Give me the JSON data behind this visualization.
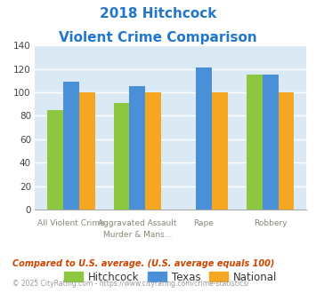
{
  "title_line1": "2018 Hitchcock",
  "title_line2": "Violent Crime Comparison",
  "cat_labels_top": [
    "",
    "Aggravated Assault",
    "",
    ""
  ],
  "cat_labels_bot": [
    "All Violent Crime",
    "Murder & Mans...",
    "Rape",
    "Robbery"
  ],
  "series": {
    "Hitchcock": [
      85,
      91,
      0,
      115
    ],
    "Texas": [
      109,
      105,
      121,
      115
    ],
    "National": [
      100,
      100,
      100,
      100
    ]
  },
  "colors": {
    "Hitchcock": "#8dc63f",
    "Texas": "#4a90d9",
    "National": "#f5a623"
  },
  "ylim": [
    0,
    140
  ],
  "yticks": [
    0,
    20,
    40,
    60,
    80,
    100,
    120,
    140
  ],
  "plot_bg": "#dbe9f5",
  "grid_color": "#ffffff",
  "footnote": "Compared to U.S. average. (U.S. average equals 100)",
  "copyright": "© 2025 CityRating.com - https://www.cityrating.com/crime-statistics/",
  "title_color": "#2277cc",
  "footnote_color": "#cc4400",
  "copyright_color": "#999999",
  "url_color": "#4488cc"
}
